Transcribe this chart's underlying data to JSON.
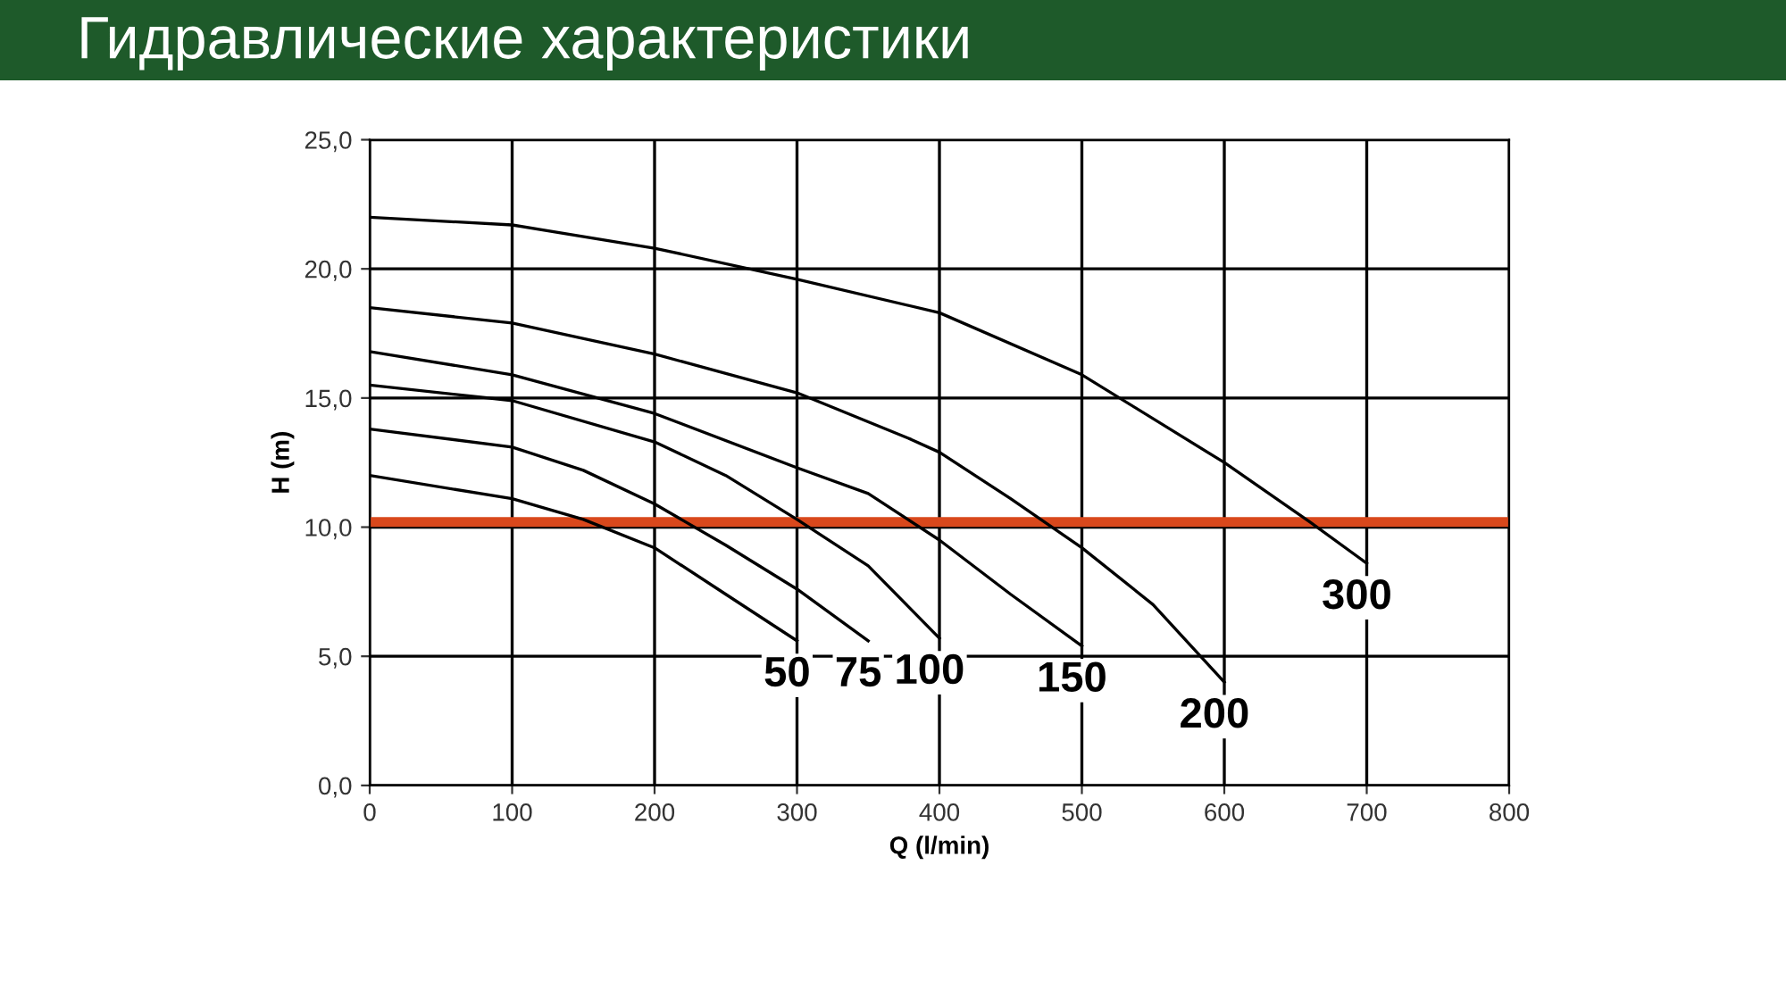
{
  "chart_data": {
    "type": "line",
    "title": "Гидравлические характеристики",
    "xlabel": "Q (l/min)",
    "ylabel": "H (m)",
    "xlim": [
      0,
      800
    ],
    "xticks": [
      0,
      100,
      200,
      300,
      400,
      500,
      600,
      700,
      800
    ],
    "ylim": [
      0,
      25
    ],
    "yticks": [
      {
        "value": 0,
        "label": "0,0"
      },
      {
        "value": 5,
        "label": "5,0"
      },
      {
        "value": 10,
        "label": "10,0"
      },
      {
        "value": 15,
        "label": "15,0"
      },
      {
        "value": 20,
        "label": "20,0"
      },
      {
        "value": 25,
        "label": "25,0"
      }
    ],
    "grid": true,
    "legend": false,
    "marker": "none",
    "line_style": "solid",
    "series": [
      {
        "name": "50",
        "color": "#000000",
        "x": [
          0,
          100,
          150,
          200,
          250,
          300
        ],
        "values": [
          12.0,
          11.1,
          10.3,
          9.2,
          7.4,
          5.6
        ]
      },
      {
        "name": "75",
        "color": "#000000",
        "x": [
          0,
          100,
          150,
          200,
          250,
          300,
          350
        ],
        "values": [
          13.8,
          13.1,
          12.2,
          10.9,
          9.3,
          7.6,
          5.6
        ]
      },
      {
        "name": "100",
        "color": "#000000",
        "x": [
          0,
          100,
          200,
          250,
          300,
          350,
          400
        ],
        "values": [
          15.5,
          14.9,
          13.3,
          12.0,
          10.3,
          8.5,
          5.7
        ]
      },
      {
        "name": "150",
        "color": "#000000",
        "x": [
          0,
          100,
          200,
          300,
          350,
          400,
          450,
          500
        ],
        "values": [
          16.8,
          15.9,
          14.4,
          12.3,
          11.3,
          9.5,
          7.4,
          5.4
        ]
      },
      {
        "name": "200",
        "color": "#000000",
        "x": [
          0,
          100,
          200,
          300,
          380,
          400,
          450,
          500,
          550,
          600
        ],
        "values": [
          18.5,
          17.9,
          16.7,
          15.2,
          13.4,
          12.9,
          11.1,
          9.2,
          7.0,
          4.0
        ]
      },
      {
        "name": "300",
        "color": "#000000",
        "x": [
          0,
          100,
          200,
          300,
          400,
          500,
          600,
          660,
          700
        ],
        "values": [
          22.0,
          21.7,
          20.8,
          19.6,
          18.3,
          15.9,
          12.5,
          10.2,
          8.6
        ]
      }
    ],
    "ref_lines": [
      {
        "axis": "y",
        "value": 10.2,
        "color": "#d9481c",
        "line_style": "solid"
      }
    ]
  }
}
